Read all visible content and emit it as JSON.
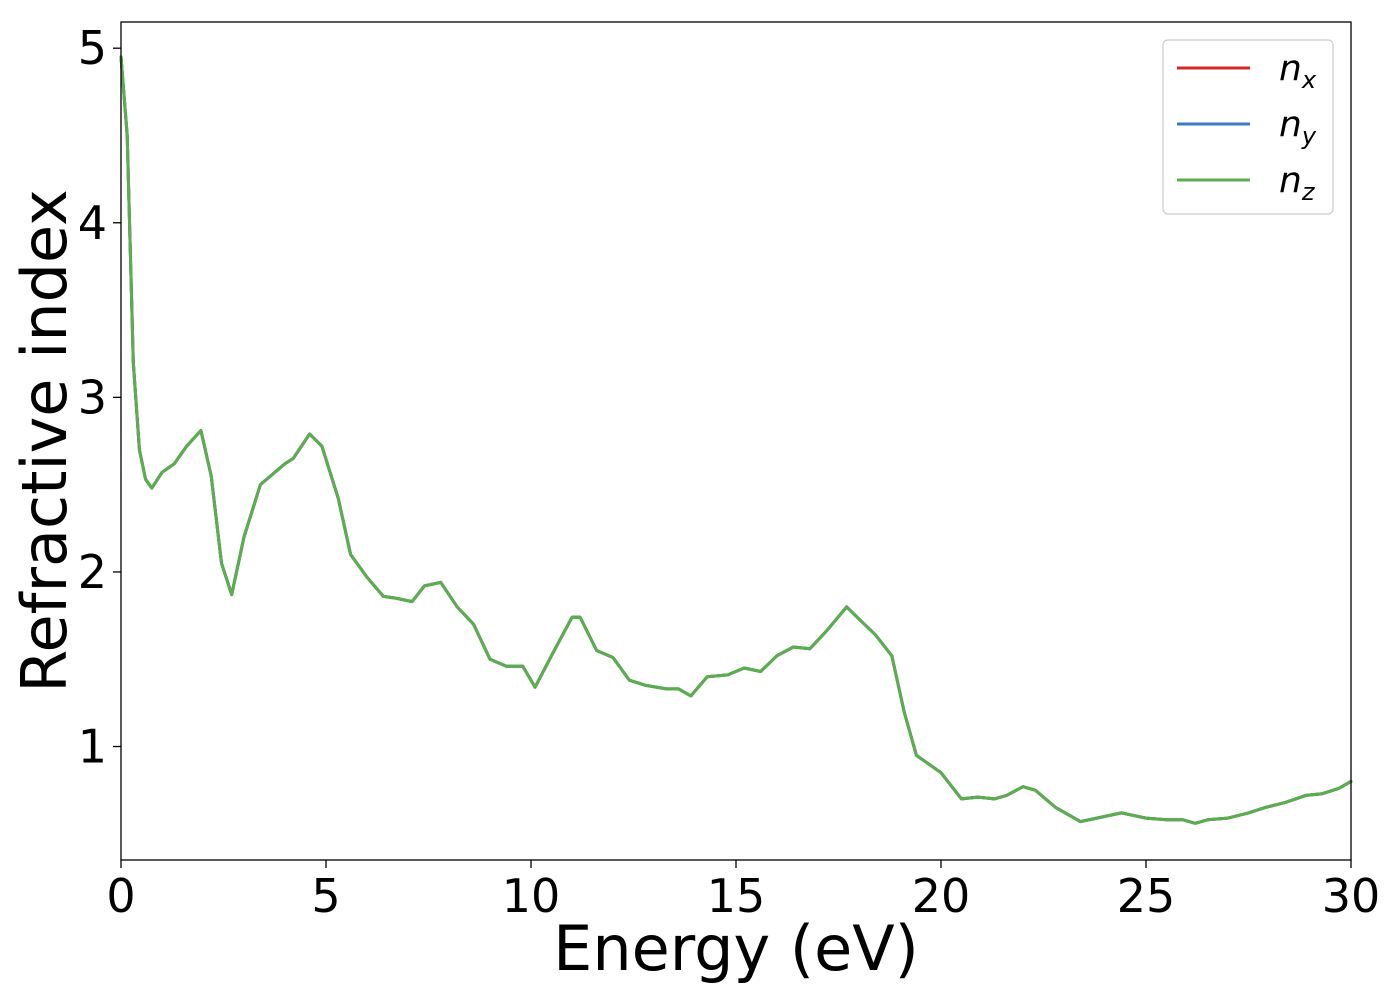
{
  "chart_data": {
    "type": "line",
    "xlabel": "Energy (eV)",
    "ylabel": "Refractive index",
    "xlim": [
      0,
      30
    ],
    "ylim": [
      0.35,
      5.15
    ],
    "xticks": [
      0,
      5,
      10,
      15,
      20,
      25,
      30
    ],
    "yticks": [
      1,
      2,
      3,
      4,
      5
    ],
    "grid": false,
    "legend_position": "top-right",
    "series": [
      {
        "name": "n_x",
        "label_base": "n",
        "label_sub": "x",
        "color": "#d62728",
        "x": [
          0,
          0.15,
          0.3,
          0.45,
          0.6,
          0.75,
          1.0,
          1.3,
          1.6,
          1.95,
          2.2,
          2.45,
          2.7,
          3.0,
          3.4,
          4.0,
          4.2,
          4.6,
          4.9,
          5.3,
          5.6,
          6.0,
          6.4,
          6.7,
          7.1,
          7.4,
          7.8,
          8.2,
          8.6,
          9.0,
          9.4,
          9.8,
          10.1,
          10.5,
          11.0,
          11.2,
          11.6,
          12.0,
          12.4,
          12.8,
          13.3,
          13.6,
          13.9,
          14.3,
          14.8,
          15.2,
          15.6,
          16.0,
          16.4,
          16.8,
          17.2,
          17.7,
          18.0,
          18.4,
          18.8,
          19.1,
          19.4,
          19.7,
          20.0,
          20.5,
          20.9,
          21.3,
          21.6,
          22.0,
          22.3,
          22.8,
          23.4,
          24.0,
          24.4,
          25.0,
          25.5,
          25.9,
          26.2,
          26.5,
          27.0,
          27.5,
          27.9,
          28.4,
          28.9,
          29.3,
          29.7,
          30.0
        ],
        "y": [
          4.95,
          4.5,
          3.2,
          2.7,
          2.53,
          2.48,
          2.57,
          2.62,
          2.72,
          2.81,
          2.55,
          2.05,
          1.87,
          2.2,
          2.5,
          2.62,
          2.65,
          2.79,
          2.72,
          2.42,
          2.1,
          1.97,
          1.86,
          1.85,
          1.83,
          1.92,
          1.94,
          1.8,
          1.7,
          1.5,
          1.46,
          1.46,
          1.34,
          1.52,
          1.74,
          1.74,
          1.55,
          1.51,
          1.38,
          1.35,
          1.33,
          1.33,
          1.29,
          1.4,
          1.41,
          1.45,
          1.43,
          1.52,
          1.57,
          1.56,
          1.66,
          1.8,
          1.73,
          1.64,
          1.52,
          1.2,
          0.95,
          0.9,
          0.85,
          0.7,
          0.71,
          0.7,
          0.72,
          0.77,
          0.75,
          0.65,
          0.57,
          0.6,
          0.62,
          0.59,
          0.58,
          0.58,
          0.56,
          0.58,
          0.59,
          0.62,
          0.65,
          0.68,
          0.72,
          0.73,
          0.76,
          0.8
        ]
      },
      {
        "name": "n_y",
        "label_base": "n",
        "label_sub": "y",
        "color": "#3a7dbb",
        "x": [
          0,
          0.15,
          0.3,
          0.45,
          0.6,
          0.75,
          1.0,
          1.3,
          1.6,
          1.95,
          2.2,
          2.45,
          2.7,
          3.0,
          3.4,
          4.0,
          4.2,
          4.6,
          4.9,
          5.3,
          5.6,
          6.0,
          6.4,
          6.7,
          7.1,
          7.4,
          7.8,
          8.2,
          8.6,
          9.0,
          9.4,
          9.8,
          10.1,
          10.5,
          11.0,
          11.2,
          11.6,
          12.0,
          12.4,
          12.8,
          13.3,
          13.6,
          13.9,
          14.3,
          14.8,
          15.2,
          15.6,
          16.0,
          16.4,
          16.8,
          17.2,
          17.7,
          18.0,
          18.4,
          18.8,
          19.1,
          19.4,
          19.7,
          20.0,
          20.5,
          20.9,
          21.3,
          21.6,
          22.0,
          22.3,
          22.8,
          23.4,
          24.0,
          24.4,
          25.0,
          25.5,
          25.9,
          26.2,
          26.5,
          27.0,
          27.5,
          27.9,
          28.4,
          28.9,
          29.3,
          29.7,
          30.0
        ],
        "y": [
          4.95,
          4.5,
          3.2,
          2.7,
          2.53,
          2.48,
          2.57,
          2.62,
          2.72,
          2.81,
          2.55,
          2.05,
          1.87,
          2.2,
          2.5,
          2.62,
          2.65,
          2.79,
          2.72,
          2.42,
          2.1,
          1.97,
          1.86,
          1.85,
          1.83,
          1.92,
          1.94,
          1.8,
          1.7,
          1.5,
          1.46,
          1.46,
          1.34,
          1.52,
          1.74,
          1.74,
          1.55,
          1.51,
          1.38,
          1.35,
          1.33,
          1.33,
          1.29,
          1.4,
          1.41,
          1.45,
          1.43,
          1.52,
          1.57,
          1.56,
          1.66,
          1.8,
          1.73,
          1.64,
          1.52,
          1.2,
          0.95,
          0.9,
          0.85,
          0.7,
          0.71,
          0.7,
          0.72,
          0.77,
          0.75,
          0.65,
          0.57,
          0.6,
          0.62,
          0.59,
          0.58,
          0.58,
          0.56,
          0.58,
          0.59,
          0.62,
          0.65,
          0.68,
          0.72,
          0.73,
          0.76,
          0.8
        ]
      },
      {
        "name": "n_z",
        "label_base": "n",
        "label_sub": "z",
        "color": "#5aae4e",
        "x": [
          0,
          0.15,
          0.3,
          0.45,
          0.6,
          0.75,
          1.0,
          1.3,
          1.6,
          1.95,
          2.2,
          2.45,
          2.7,
          3.0,
          3.4,
          4.0,
          4.2,
          4.6,
          4.9,
          5.3,
          5.6,
          6.0,
          6.4,
          6.7,
          7.1,
          7.4,
          7.8,
          8.2,
          8.6,
          9.0,
          9.4,
          9.8,
          10.1,
          10.5,
          11.0,
          11.2,
          11.6,
          12.0,
          12.4,
          12.8,
          13.3,
          13.6,
          13.9,
          14.3,
          14.8,
          15.2,
          15.6,
          16.0,
          16.4,
          16.8,
          17.2,
          17.7,
          18.0,
          18.4,
          18.8,
          19.1,
          19.4,
          19.7,
          20.0,
          20.5,
          20.9,
          21.3,
          21.6,
          22.0,
          22.3,
          22.8,
          23.4,
          24.0,
          24.4,
          25.0,
          25.5,
          25.9,
          26.2,
          26.5,
          27.0,
          27.5,
          27.9,
          28.4,
          28.9,
          29.3,
          29.7,
          30.0
        ],
        "y": [
          4.95,
          4.5,
          3.2,
          2.7,
          2.53,
          2.48,
          2.57,
          2.62,
          2.72,
          2.81,
          2.55,
          2.05,
          1.87,
          2.2,
          2.5,
          2.62,
          2.65,
          2.79,
          2.72,
          2.42,
          2.1,
          1.97,
          1.86,
          1.85,
          1.83,
          1.92,
          1.94,
          1.8,
          1.7,
          1.5,
          1.46,
          1.46,
          1.34,
          1.52,
          1.74,
          1.74,
          1.55,
          1.51,
          1.38,
          1.35,
          1.33,
          1.33,
          1.29,
          1.4,
          1.41,
          1.45,
          1.43,
          1.52,
          1.57,
          1.56,
          1.66,
          1.8,
          1.73,
          1.64,
          1.52,
          1.2,
          0.95,
          0.9,
          0.85,
          0.7,
          0.71,
          0.7,
          0.72,
          0.77,
          0.75,
          0.65,
          0.57,
          0.6,
          0.62,
          0.59,
          0.58,
          0.58,
          0.56,
          0.58,
          0.59,
          0.62,
          0.65,
          0.68,
          0.72,
          0.73,
          0.76,
          0.8
        ]
      }
    ]
  }
}
